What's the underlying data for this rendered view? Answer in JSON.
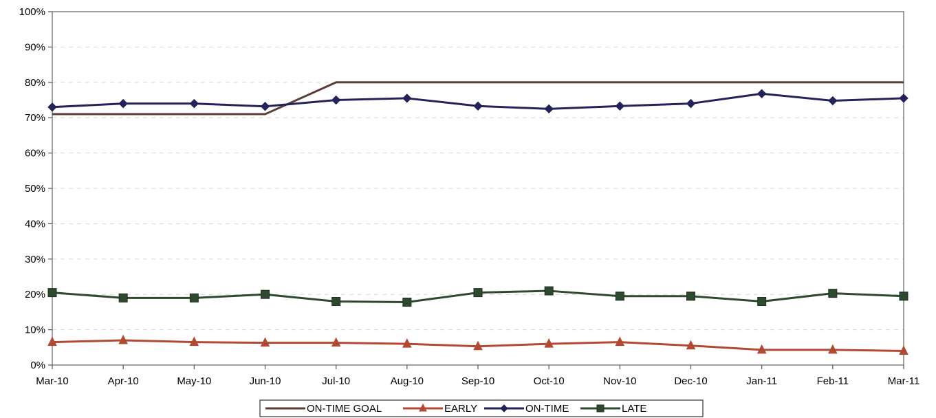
{
  "chart_data": {
    "type": "line",
    "categories": [
      "Mar-10",
      "Apr-10",
      "May-10",
      "Jun-10",
      "Jul-10",
      "Aug-10",
      "Sep-10",
      "Oct-10",
      "Nov-10",
      "Dec-10",
      "Jan-11",
      "Feb-11",
      "Mar-11"
    ],
    "ylim": [
      0,
      100
    ],
    "y_unit": "%",
    "yticks": [
      "0%",
      "10%",
      "20%",
      "30%",
      "40%",
      "50%",
      "60%",
      "70%",
      "80%",
      "90%",
      "100%"
    ],
    "grid": true,
    "legend_position": "bottom",
    "series": [
      {
        "name": "ON-TIME GOAL",
        "marker": "none",
        "color": "#5a3d36",
        "values": [
          71,
          71,
          71,
          71,
          80,
          80,
          80,
          80,
          80,
          80,
          80,
          80,
          80
        ]
      },
      {
        "name": "EARLY",
        "marker": "triangle",
        "color": "#b24a33",
        "values": [
          6.5,
          7,
          6.5,
          6.3,
          6.3,
          6,
          5.3,
          6,
          6.5,
          5.5,
          4.3,
          4.3,
          4
        ]
      },
      {
        "name": "ON-TIME",
        "marker": "diamond",
        "color": "#23235a",
        "values": [
          73,
          74,
          74,
          73.2,
          75,
          75.5,
          73.3,
          72.5,
          73.3,
          74,
          76.8,
          74.8,
          75.5
        ]
      },
      {
        "name": "LATE",
        "marker": "square",
        "color": "#2e4a2e",
        "values": [
          20.5,
          19,
          19,
          20,
          18,
          17.8,
          20.5,
          21,
          19.5,
          19.5,
          18,
          20.3,
          19.5
        ]
      }
    ]
  }
}
